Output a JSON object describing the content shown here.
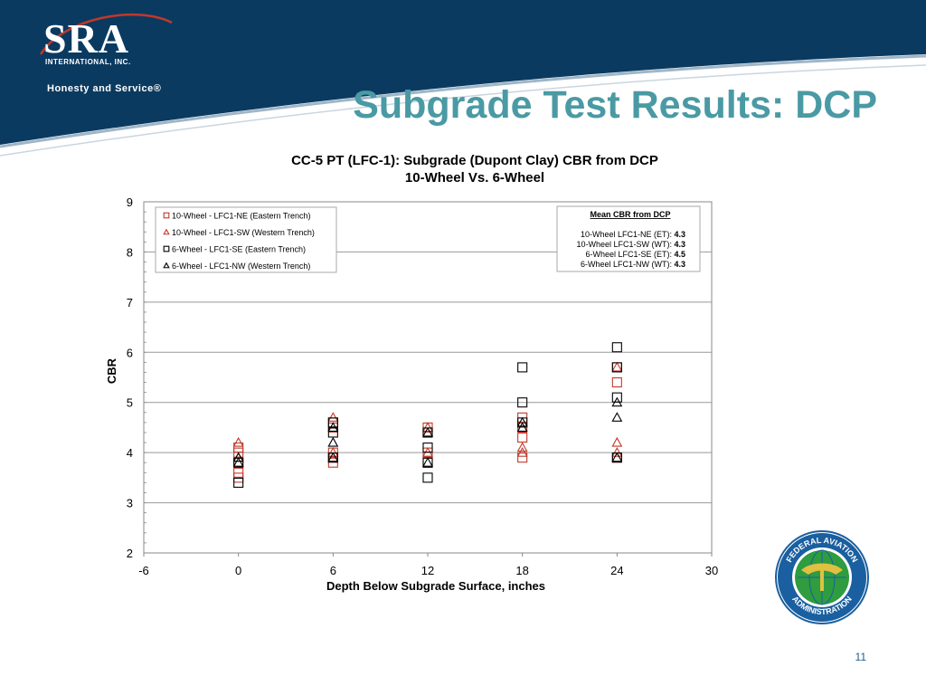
{
  "header": {
    "logo_text": "SRA",
    "logo_subtext": "INTERNATIONAL, INC.",
    "tagline": "Honesty and Service®",
    "slide_title": "Subgrade Test Results: DCP"
  },
  "seal": {
    "icon": "faa-seal-icon",
    "text_top": "FEDERAL AVIATION",
    "text_bottom": "ADMINISTRATION"
  },
  "page_number": "11",
  "colors": {
    "header_blue": "#0b3a60",
    "title_teal": "#4a9aa4",
    "ten_wheel_red": "#c0392b",
    "six_wheel_black": "#000000"
  },
  "chart_data": {
    "type": "scatter",
    "title": "CC-5 PT (LFC-1): Subgrade (Dupont Clay) CBR from DCP",
    "subtitle": "10-Wheel Vs. 6-Wheel",
    "xlabel": "Depth Below Subgrade Surface, inches",
    "ylabel": "CBR",
    "xlim": [
      -6,
      30
    ],
    "ylim": [
      2,
      9
    ],
    "xticks": [
      -6,
      0,
      6,
      12,
      18,
      24,
      30
    ],
    "yticks": [
      2,
      3,
      4,
      5,
      6,
      7,
      8,
      9
    ],
    "grid": "horizontal",
    "legend_position": "top-left",
    "series": [
      {
        "name": "10-Wheel - LFC1-NE (Eastern Trench)",
        "marker": "square",
        "color": "#c0392b",
        "points": [
          [
            0,
            3.5
          ],
          [
            0,
            3.6
          ],
          [
            0,
            3.8
          ],
          [
            0,
            4.0
          ],
          [
            0,
            4.1
          ],
          [
            6,
            3.8
          ],
          [
            6,
            3.9
          ],
          [
            6,
            4.0
          ],
          [
            6,
            4.5
          ],
          [
            6,
            4.6
          ],
          [
            12,
            3.8
          ],
          [
            12,
            4.0
          ],
          [
            12,
            4.4
          ],
          [
            12,
            4.5
          ],
          [
            18,
            3.9
          ],
          [
            18,
            4.3
          ],
          [
            18,
            4.5
          ],
          [
            18,
            4.7
          ],
          [
            24,
            3.9
          ],
          [
            24,
            5.4
          ],
          [
            24,
            5.7
          ]
        ]
      },
      {
        "name": "10-Wheel - LFC1-SW (Western Trench)",
        "marker": "triangle",
        "color": "#c0392b",
        "points": [
          [
            0,
            3.9
          ],
          [
            0,
            4.2
          ],
          [
            6,
            4.0
          ],
          [
            6,
            4.7
          ],
          [
            12,
            4.5
          ],
          [
            12,
            4.0
          ],
          [
            18,
            4.0
          ],
          [
            18,
            4.1
          ],
          [
            24,
            4.0
          ],
          [
            24,
            4.2
          ],
          [
            24,
            5.7
          ]
        ]
      },
      {
        "name": "6-Wheel - LFC1-SE (Eastern Trench)",
        "marker": "square",
        "color": "#000000",
        "points": [
          [
            0,
            3.4
          ],
          [
            0,
            3.8
          ],
          [
            6,
            3.9
          ],
          [
            6,
            4.4
          ],
          [
            6,
            4.6
          ],
          [
            12,
            3.5
          ],
          [
            12,
            3.8
          ],
          [
            12,
            4.1
          ],
          [
            12,
            4.4
          ],
          [
            18,
            4.6
          ],
          [
            18,
            5.0
          ],
          [
            18,
            5.7
          ],
          [
            24,
            3.9
          ],
          [
            24,
            5.1
          ],
          [
            24,
            5.7
          ],
          [
            24,
            6.1
          ]
        ]
      },
      {
        "name": "6-Wheel - LFC1-NW (Western Trench)",
        "marker": "triangle",
        "color": "#000000",
        "points": [
          [
            0,
            3.8
          ],
          [
            0,
            3.9
          ],
          [
            6,
            3.9
          ],
          [
            6,
            4.2
          ],
          [
            6,
            4.5
          ],
          [
            12,
            3.8
          ],
          [
            12,
            4.4
          ],
          [
            18,
            4.5
          ],
          [
            18,
            4.6
          ],
          [
            24,
            3.9
          ],
          [
            24,
            4.7
          ],
          [
            24,
            5.0
          ]
        ]
      }
    ],
    "annotation": {
      "title": "Mean CBR from DCP",
      "rows": [
        {
          "label": "10-Wheel LFC1-NE (ET):",
          "value": "4.3"
        },
        {
          "label": "10-Wheel LFC1-SW (WT):",
          "value": "4.3"
        },
        {
          "label": "6-Wheel LFC1-SE (ET):",
          "value": "4.5"
        },
        {
          "label": "6-Wheel LFC1-NW (WT):",
          "value": "4.3"
        }
      ]
    }
  }
}
